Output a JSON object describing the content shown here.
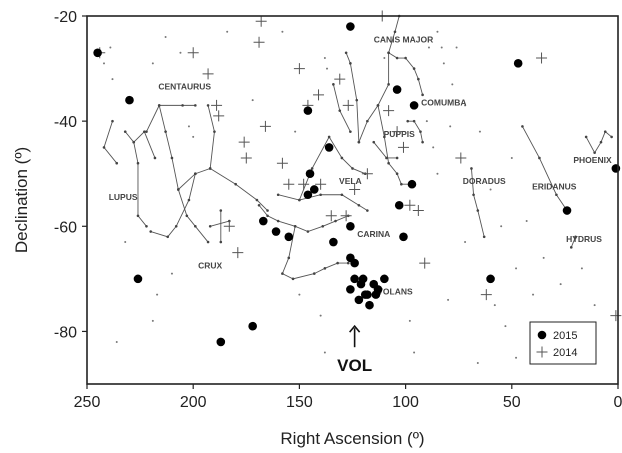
{
  "chart_data": {
    "type": "scatter",
    "xlabel": "Right Ascension (º)",
    "ylabel": "Declination (º)",
    "xlim": [
      250,
      0
    ],
    "ylim": [
      -90,
      -20
    ],
    "x_ticks": [
      250,
      200,
      150,
      100,
      50,
      0
    ],
    "y_ticks": [
      -20,
      -40,
      -60,
      -80
    ],
    "x_tick_labels": [
      "250",
      "200",
      "150",
      "100",
      "50",
      "0"
    ],
    "y_tick_labels": [
      "-20",
      "-40",
      "-60",
      "-80"
    ],
    "legend_position": "bottom-right",
    "series": [
      {
        "name": "2015",
        "marker": "filled-circle",
        "points": [
          [
            245,
            -27
          ],
          [
            230,
            -36
          ],
          [
            226,
            -70
          ],
          [
            187,
            -82
          ],
          [
            172,
            -79
          ],
          [
            167,
            -59
          ],
          [
            161,
            -61
          ],
          [
            155,
            -62
          ],
          [
            146,
            -54
          ],
          [
            145,
            -50
          ],
          [
            146,
            -38
          ],
          [
            143,
            -53
          ],
          [
            136,
            -45
          ],
          [
            134,
            -63
          ],
          [
            126,
            -22
          ],
          [
            126,
            -60
          ],
          [
            126,
            -66
          ],
          [
            124,
            -67
          ],
          [
            124,
            -70
          ],
          [
            121,
            -71
          ],
          [
            119,
            -73
          ],
          [
            117,
            -75
          ],
          [
            115,
            -71
          ],
          [
            113,
            -72
          ],
          [
            126,
            -72
          ],
          [
            122,
            -74
          ],
          [
            118,
            -73
          ],
          [
            120,
            -70
          ],
          [
            114,
            -73
          ],
          [
            110,
            -70
          ],
          [
            103,
            -56
          ],
          [
            101,
            -62
          ],
          [
            104,
            -34
          ],
          [
            97,
            -52
          ],
          [
            96,
            -37
          ],
          [
            47,
            -29
          ],
          [
            60,
            -70
          ],
          [
            24,
            -57
          ],
          [
            1,
            -49
          ]
        ]
      },
      {
        "name": "2014",
        "marker": "plus",
        "points": [
          [
            244,
            -27
          ],
          [
            200,
            -27
          ],
          [
            193,
            -31
          ],
          [
            189,
            -37
          ],
          [
            188,
            -39
          ],
          [
            183,
            -60
          ],
          [
            179,
            -65
          ],
          [
            176,
            -44
          ],
          [
            175,
            -47
          ],
          [
            169,
            -25
          ],
          [
            168,
            -21
          ],
          [
            166,
            -41
          ],
          [
            158,
            -48
          ],
          [
            155,
            -52
          ],
          [
            150,
            -30
          ],
          [
            148,
            -52
          ],
          [
            146,
            -37
          ],
          [
            141,
            -35
          ],
          [
            140,
            -52
          ],
          [
            135,
            -58
          ],
          [
            131,
            -32
          ],
          [
            128,
            -58
          ],
          [
            127,
            -37
          ],
          [
            124,
            -53
          ],
          [
            118,
            -50
          ],
          [
            111,
            -20
          ],
          [
            108,
            -38
          ],
          [
            104,
            -42
          ],
          [
            101,
            -45
          ],
          [
            98,
            -56
          ],
          [
            94,
            -57
          ],
          [
            91,
            -67
          ],
          [
            74,
            -47
          ],
          [
            62,
            -73
          ],
          [
            36,
            -28
          ],
          [
            1,
            -77
          ]
        ]
      }
    ],
    "annotations": [
      {
        "text": "VOL",
        "type": "arrow-label",
        "x": 124,
        "y": -82
      }
    ],
    "constellations": [
      {
        "name": "CANIS MAJOR",
        "label_x": 101,
        "label_y": -25
      },
      {
        "name": "CENTAURUS",
        "label_x": 204,
        "label_y": -34
      },
      {
        "name": "COMUMBA",
        "label_x": 82,
        "label_y": -37
      },
      {
        "name": "PUPPIS",
        "label_x": 103,
        "label_y": -43
      },
      {
        "name": "VELA",
        "label_x": 126,
        "label_y": -52
      },
      {
        "name": "PHOENIX",
        "label_x": 12,
        "label_y": -48
      },
      {
        "name": "DORADUS",
        "label_x": 63,
        "label_y": -52
      },
      {
        "name": "ERIDANUS",
        "label_x": 30,
        "label_y": -53
      },
      {
        "name": "LUPUS",
        "label_x": 233,
        "label_y": -55
      },
      {
        "name": "CARINA",
        "label_x": 115,
        "label_y": -62
      },
      {
        "name": "CRUX",
        "label_x": 192,
        "label_y": -68
      },
      {
        "name": "HYDRUS",
        "label_x": 16,
        "label_y": -63
      },
      {
        "name": "VOLANS",
        "label_x": 105,
        "label_y": -73
      }
    ],
    "constellation_lines": [
      [
        [
          232,
          -42
        ],
        [
          228,
          -44
        ],
        [
          226,
          -48
        ],
        [
          226,
          -58
        ],
        [
          222,
          -60
        ]
      ],
      [
        [
          228,
          -44
        ],
        [
          223,
          -42
        ],
        [
          218,
          -47
        ]
      ],
      [
        [
          222,
          -42
        ],
        [
          216,
          -37
        ],
        [
          205,
          -37
        ],
        [
          199,
          -37
        ]
      ],
      [
        [
          216,
          -37
        ],
        [
          213,
          -42
        ],
        [
          210,
          -47
        ],
        [
          207,
          -53
        ],
        [
          203,
          -58
        ],
        [
          199,
          -60
        ],
        [
          193,
          -63
        ]
      ],
      [
        [
          207,
          -53
        ],
        [
          199,
          -50
        ],
        [
          192,
          -49
        ],
        [
          180,
          -52
        ],
        [
          170,
          -55
        ],
        [
          165,
          -57
        ]
      ],
      [
        [
          192,
          -49
        ],
        [
          190,
          -42
        ],
        [
          193,
          -37
        ]
      ],
      [
        [
          199,
          -50
        ],
        [
          202,
          -55
        ],
        [
          208,
          -60
        ],
        [
          212,
          -62
        ],
        [
          220,
          -61
        ]
      ],
      [
        [
          187,
          -57
        ],
        [
          187,
          -63
        ]
      ],
      [
        [
          192,
          -60
        ],
        [
          183,
          -59
        ]
      ],
      [
        [
          169,
          -56
        ],
        [
          165,
          -58
        ],
        [
          160,
          -59
        ],
        [
          152,
          -60
        ],
        [
          146,
          -61
        ],
        [
          139,
          -60
        ],
        [
          133,
          -59
        ],
        [
          127,
          -58
        ]
      ],
      [
        [
          152,
          -60
        ],
        [
          155,
          -66
        ],
        [
          158,
          -69
        ],
        [
          153,
          -70
        ],
        [
          143,
          -69
        ],
        [
          138,
          -68
        ],
        [
          132,
          -67
        ],
        [
          127,
          -67
        ]
      ],
      [
        [
          160,
          -54
        ],
        [
          150,
          -55
        ],
        [
          140,
          -54
        ],
        [
          130,
          -54
        ],
        [
          122,
          -56
        ],
        [
          118,
          -57
        ]
      ],
      [
        [
          150,
          -55
        ],
        [
          144,
          -49
        ],
        [
          136,
          -43
        ],
        [
          130,
          -47
        ],
        [
          125,
          -49
        ],
        [
          119,
          -50
        ]
      ],
      [
        [
          122,
          -44
        ],
        [
          118,
          -40
        ],
        [
          113,
          -37
        ],
        [
          108,
          -33
        ],
        [
          108,
          -27
        ],
        [
          105,
          -23
        ],
        [
          103,
          -20
        ]
      ],
      [
        [
          113,
          -37
        ],
        [
          110,
          -43
        ],
        [
          108,
          -48
        ],
        [
          104,
          -50
        ],
        [
          102,
          -52
        ],
        [
          98,
          -52
        ]
      ],
      [
        [
          108,
          -27
        ],
        [
          104,
          -28
        ],
        [
          100,
          -28
        ],
        [
          96,
          -30
        ],
        [
          94,
          -32
        ],
        [
          92,
          -35
        ]
      ],
      [
        [
          122,
          -44
        ],
        [
          123,
          -36
        ],
        [
          126,
          -29
        ],
        [
          128,
          -27
        ]
      ],
      [
        [
          134,
          -33
        ],
        [
          131,
          -38
        ],
        [
          126,
          -42
        ]
      ],
      [
        [
          115,
          -44
        ],
        [
          109,
          -47
        ],
        [
          104,
          -47
        ]
      ],
      [
        [
          99,
          -40
        ],
        [
          96,
          -40
        ],
        [
          93,
          -42
        ],
        [
          92,
          -44
        ]
      ],
      [
        [
          69,
          -49
        ],
        [
          68,
          -54
        ],
        [
          66,
          -57
        ],
        [
          63,
          -62
        ]
      ],
      [
        [
          45,
          -41
        ],
        [
          37,
          -47
        ],
        [
          29,
          -54
        ],
        [
          24,
          -57
        ]
      ],
      [
        [
          15,
          -43
        ],
        [
          11,
          -46
        ],
        [
          8,
          -44
        ],
        [
          6,
          -42
        ],
        [
          3,
          -43
        ]
      ],
      [
        [
          20,
          -62
        ],
        [
          22,
          -64
        ]
      ],
      [
        [
          238,
          -40
        ],
        [
          242,
          -45
        ],
        [
          236,
          -48
        ]
      ]
    ],
    "background_stars": [
      [
        238,
        -32
      ],
      [
        242,
        -29
      ],
      [
        239,
        -26
      ],
      [
        213,
        -24
      ],
      [
        206,
        -27
      ],
      [
        219,
        -29
      ],
      [
        202,
        -41
      ],
      [
        200,
        -43
      ],
      [
        184,
        -23
      ],
      [
        172,
        -36
      ],
      [
        158,
        -23
      ],
      [
        152,
        -42
      ],
      [
        138,
        -28
      ],
      [
        137,
        -30
      ],
      [
        110,
        -28
      ],
      [
        89,
        -26
      ],
      [
        83,
        -26
      ],
      [
        85,
        -23
      ],
      [
        76,
        -26
      ],
      [
        78,
        -33
      ],
      [
        79,
        -41
      ],
      [
        72,
        -37
      ],
      [
        90,
        -40
      ],
      [
        82,
        -29
      ],
      [
        65,
        -42
      ],
      [
        87,
        -45
      ],
      [
        85,
        -50
      ],
      [
        72,
        -63
      ],
      [
        60,
        -53
      ],
      [
        55,
        -60
      ],
      [
        50,
        -47
      ],
      [
        48,
        -68
      ],
      [
        43,
        -59
      ],
      [
        40,
        -73
      ],
      [
        53,
        -79
      ],
      [
        58,
        -75
      ],
      [
        11,
        -75
      ],
      [
        17,
        -68
      ],
      [
        27,
        -71
      ],
      [
        35,
        -66
      ],
      [
        217,
        -73
      ],
      [
        210,
        -69
      ],
      [
        232,
        -63
      ],
      [
        219,
        -78
      ],
      [
        236,
        -82
      ],
      [
        150,
        -73
      ],
      [
        140,
        -77
      ],
      [
        138,
        -84
      ],
      [
        98,
        -78
      ],
      [
        96,
        -84
      ],
      [
        80,
        -74
      ],
      [
        66,
        -86
      ],
      [
        48,
        -85
      ],
      [
        24,
        -84
      ]
    ]
  }
}
